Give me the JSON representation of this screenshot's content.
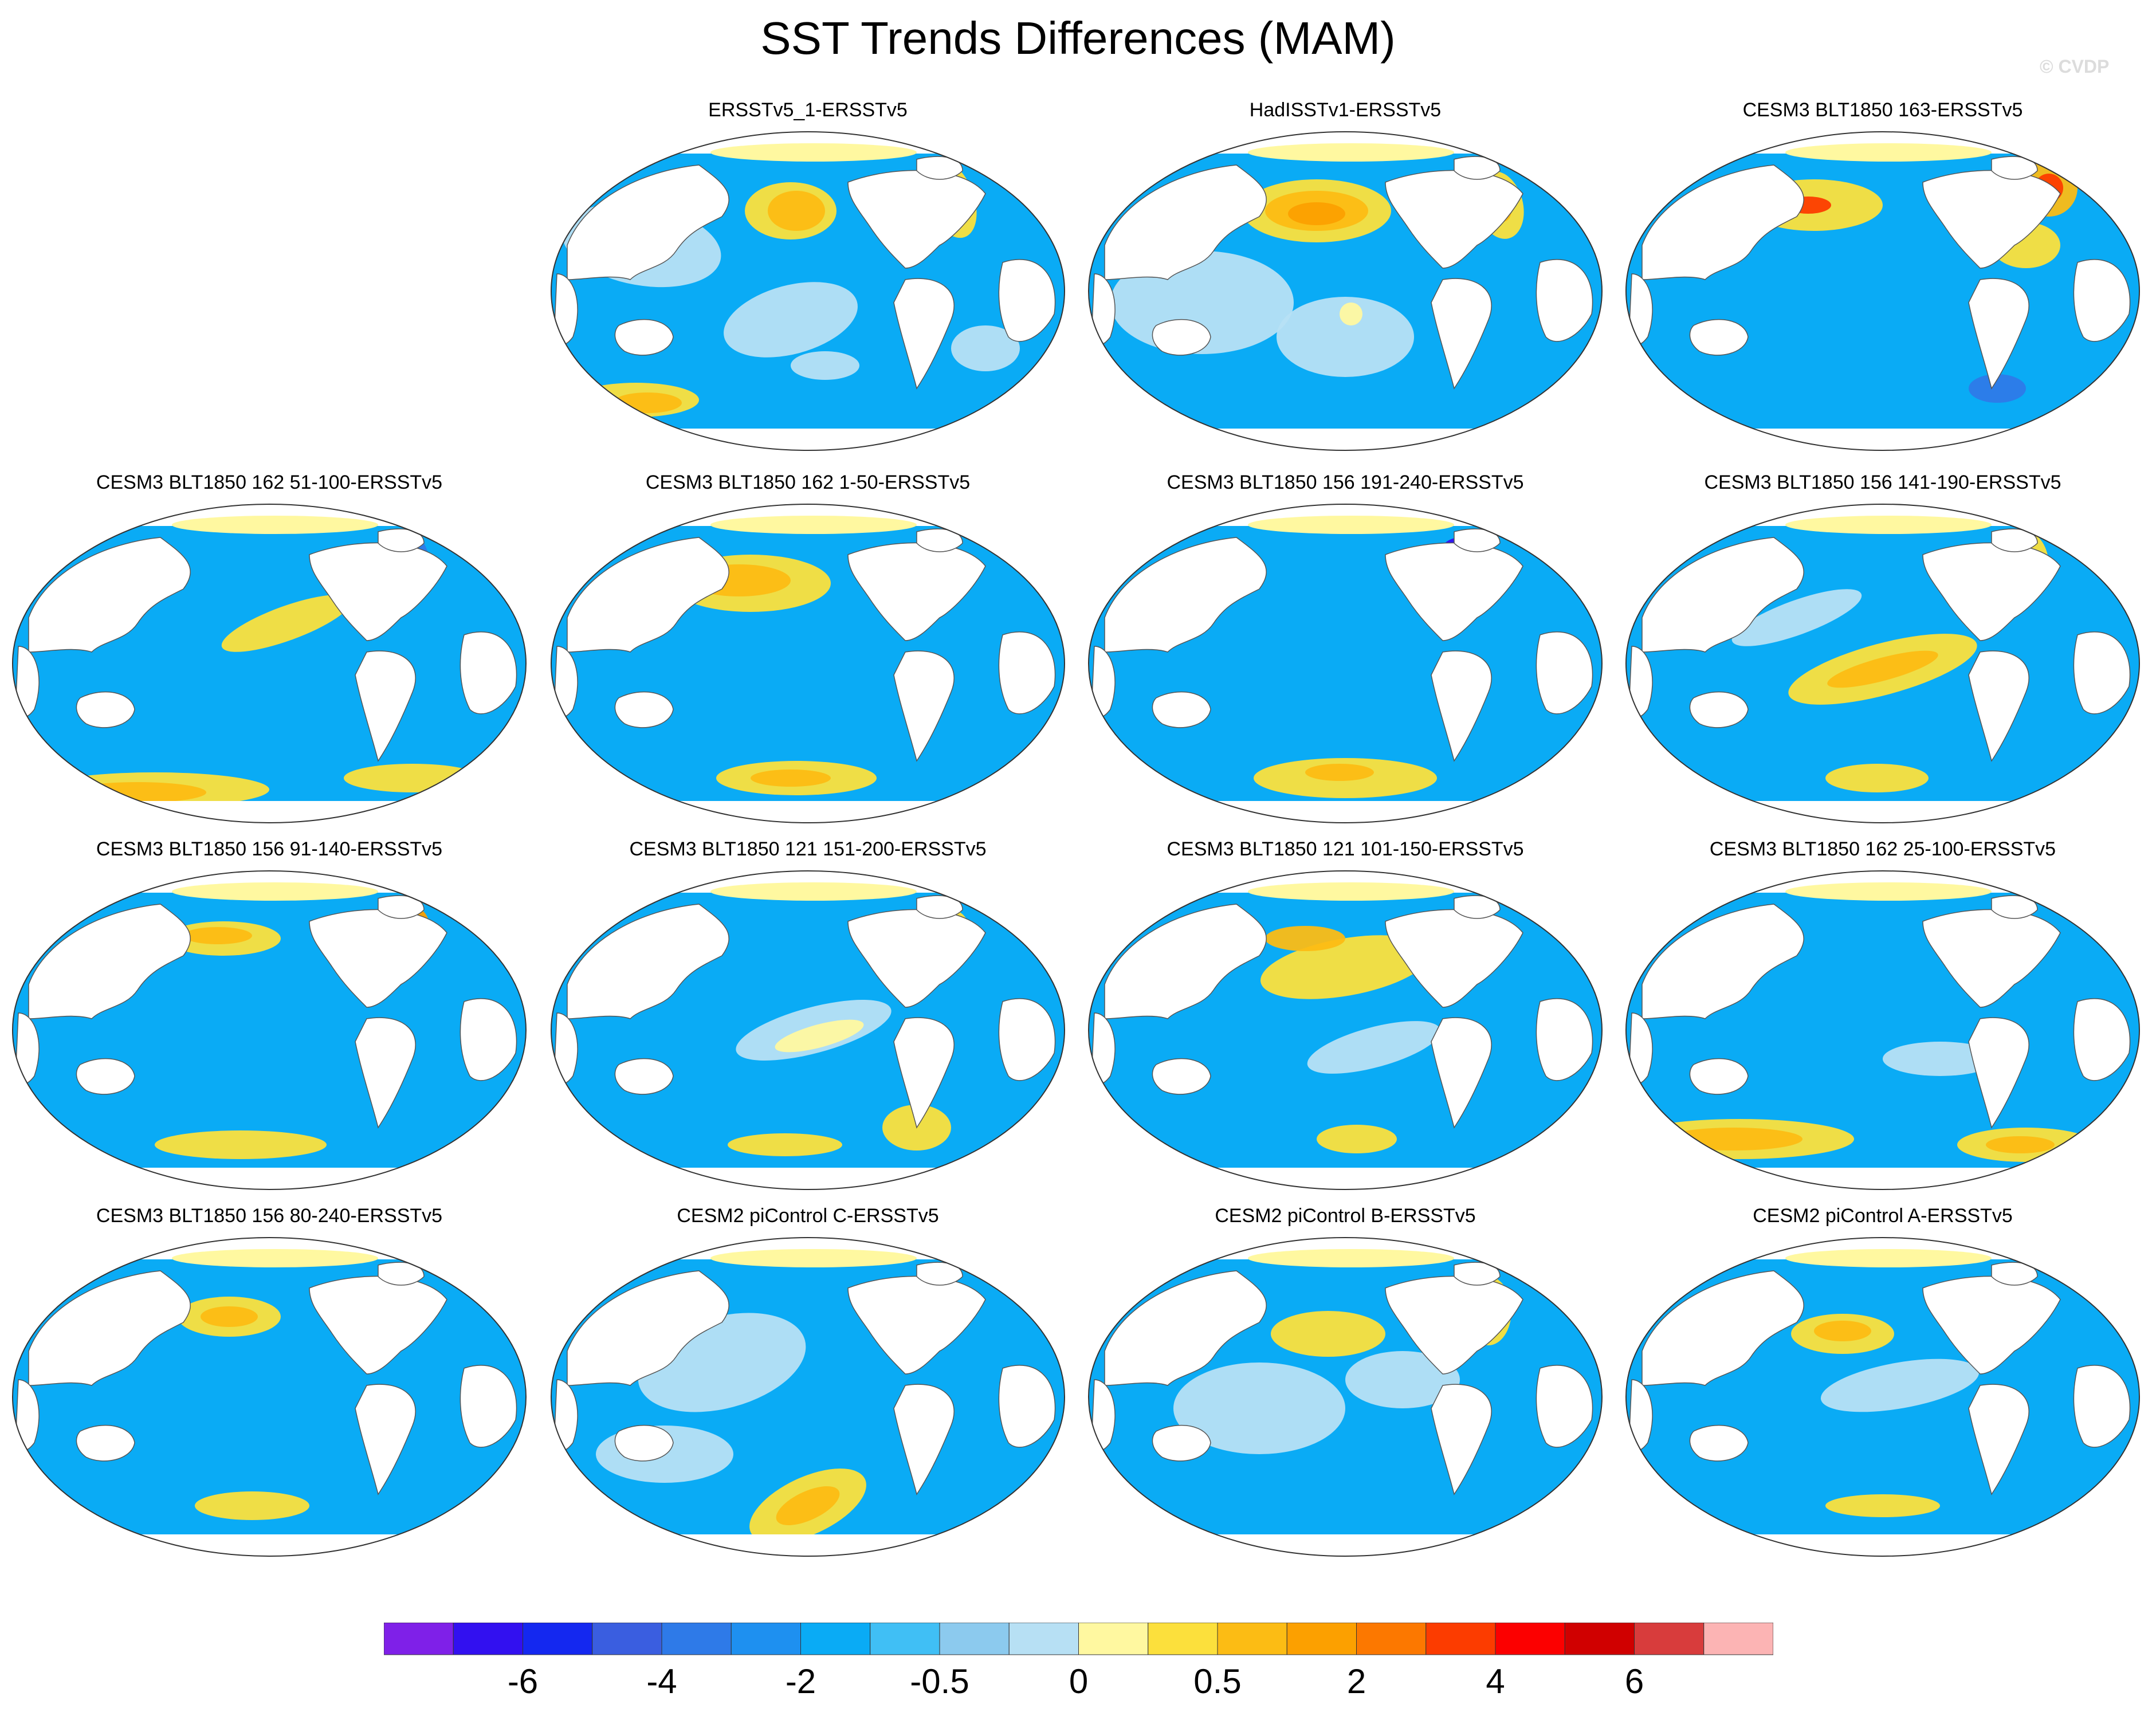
{
  "title": "SST Trends Differences (MAM)",
  "watermark": "© CVDP",
  "panels": [
    {
      "label": "ERSSTv5_1-ERSSTv5",
      "pattern": "erss"
    },
    {
      "label": "HadISSTv1-ERSSTv5",
      "pattern": "had"
    },
    {
      "label": "CESM3 BLT1850 163-ERSSTv5",
      "pattern": "c163"
    },
    {
      "label": "CESM3 BLT1850 162 51-100-ERSSTv5",
      "pattern": "p51"
    },
    {
      "label": "CESM3 BLT1850 162 1-50-ERSSTv5",
      "pattern": "p1"
    },
    {
      "label": "CESM3 BLT1850 156 191-240-ERSSTv5",
      "pattern": "p191"
    },
    {
      "label": "CESM3 BLT1850 156 141-190-ERSSTv5",
      "pattern": "p141"
    },
    {
      "label": "CESM3 BLT1850 156 91-140-ERSSTv5",
      "pattern": "p91"
    },
    {
      "label": "CESM3 BLT1850 121 151-200-ERSSTv5",
      "pattern": "p151"
    },
    {
      "label": "CESM3 BLT1850 121 101-150-ERSSTv5",
      "pattern": "p101"
    },
    {
      "label": "CESM3 BLT1850 162 25-100-ERSSTv5",
      "pattern": "p25"
    },
    {
      "label": "CESM3 BLT1850 156 80-240-ERSSTv5",
      "pattern": "p80"
    },
    {
      "label": "CESM2 piControl C-ERSSTv5",
      "pattern": "pc"
    },
    {
      "label": "CESM2 piControl B-ERSSTv5",
      "pattern": "pb"
    },
    {
      "label": "CESM2 piControl A-ERSSTv5",
      "pattern": "pa"
    }
  ],
  "colorbar": {
    "colors": [
      "#7f20e8",
      "#3210f0",
      "#1428f0",
      "#3a5ee0",
      "#2e7ae8",
      "#1e90f0",
      "#0aabf5",
      "#40bff5",
      "#8ccaee",
      "#b7e0f4",
      "#fff8a0",
      "#fce03c",
      "#fcbc14",
      "#fca000",
      "#fc7800",
      "#fc3c00",
      "#fc0000",
      "#d00000",
      "#d83c3c",
      "#fcb4b4"
    ],
    "labels": [
      "-6",
      "-4",
      "-2",
      "-0.5",
      "0",
      "0.5",
      "2",
      "4",
      "6"
    ]
  }
}
